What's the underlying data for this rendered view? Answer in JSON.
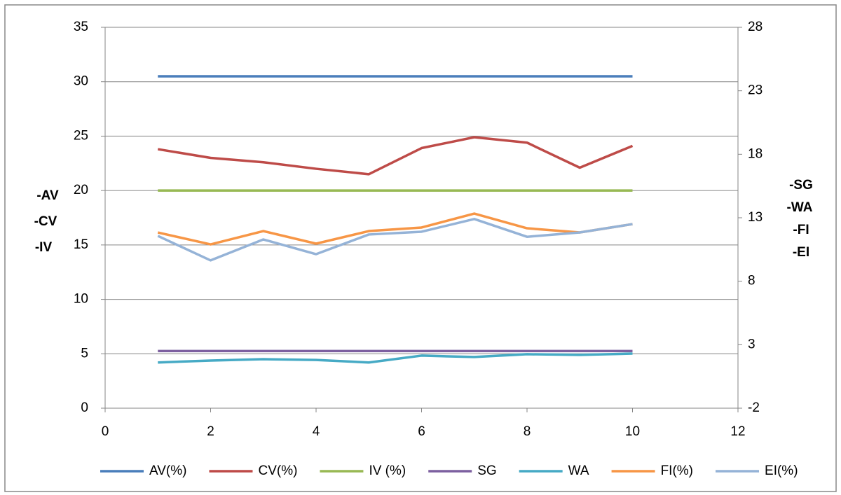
{
  "chart_data": {
    "type": "line",
    "ylabel": [
      "-AV",
      "-CV",
      "-IV"
    ],
    "y2label": [
      "-SG",
      "-WA",
      "-FI",
      "-EI"
    ],
    "x": [
      1,
      2,
      3,
      4,
      5,
      6,
      7,
      8,
      9,
      10
    ],
    "xlim": [
      0,
      12
    ],
    "xticks": [
      0,
      2,
      4,
      6,
      8,
      10,
      12
    ],
    "ylim": [
      0,
      35
    ],
    "yticks": [
      0,
      5,
      10,
      15,
      20,
      25,
      30,
      35
    ],
    "y2lim": [
      -2,
      28
    ],
    "y2ticks": [
      -2,
      3,
      8,
      13,
      18,
      23,
      28
    ],
    "grid": true,
    "legend": "bottom",
    "series": [
      {
        "name": "AV(%)",
        "color": "#4a7ebb",
        "values": [
          30.5,
          30.5,
          30.5,
          30.5,
          30.5,
          30.5,
          30.5,
          30.5,
          30.5,
          30.5
        ]
      },
      {
        "name": "CV(%)",
        "color": "#be4b48",
        "values": [
          23.8,
          23.0,
          22.6,
          22.0,
          21.5,
          23.9,
          24.9,
          24.4,
          22.1,
          24.1
        ]
      },
      {
        "name": "IV (%)",
        "color": "#98b954",
        "values": [
          20,
          20,
          20,
          20,
          20,
          20,
          20,
          20,
          20,
          20
        ]
      },
      {
        "name": "SG",
        "color": "#7d60a0",
        "axis": "y2",
        "values": [
          2.5,
          2.5,
          2.5,
          2.5,
          2.5,
          2.5,
          2.5,
          2.5,
          2.5,
          2.5
        ]
      },
      {
        "name": "WA",
        "color": "#46aac5",
        "axis": "y2",
        "values": [
          1.6,
          1.75,
          1.86,
          1.8,
          1.6,
          2.14,
          2.03,
          2.25,
          2.2,
          2.3
        ]
      },
      {
        "name": "FI(%)",
        "color": "#f79646",
        "axis": "y2",
        "values": [
          11.84,
          10.9,
          11.95,
          10.96,
          11.95,
          12.23,
          13.33,
          12.17,
          11.84,
          12.5
        ]
      },
      {
        "name": "EI(%)",
        "color": "#95b3d7",
        "axis": "y2",
        "values": [
          11.57,
          9.64,
          11.29,
          10.13,
          11.68,
          11.9,
          12.9,
          11.5,
          11.84,
          12.5
        ]
      }
    ]
  }
}
